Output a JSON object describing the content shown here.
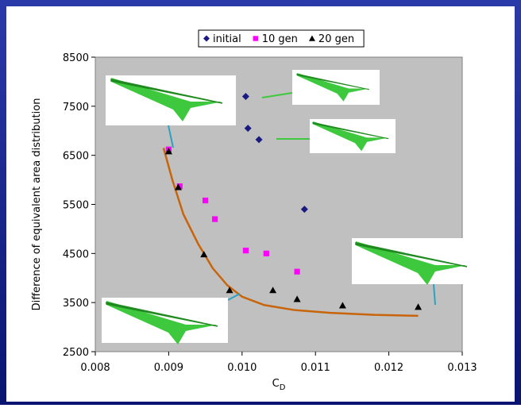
{
  "chart_data": {
    "type": "scatter",
    "xlabel": {
      "main": "C",
      "sub": "D"
    },
    "ylabel": "Difference of equivalent area distribution",
    "xlim": [
      0.008,
      0.013
    ],
    "xticks": [
      0.008,
      0.009,
      {
        "value": 0.01,
        "label": "0.010"
      },
      0.011,
      0.012,
      0.013
    ],
    "ylim": [
      2500,
      8500
    ],
    "yticks": [
      2500,
      3500,
      4500,
      5500,
      6500,
      7500,
      8500
    ],
    "plot_background": "#c0c0c0",
    "series": [
      {
        "name": "initial",
        "color": "#1a1a80",
        "marker": "diamond",
        "x": [
          0.01005,
          0.01008,
          0.01023,
          0.01085
        ],
        "values": [
          7700,
          7050,
          6820,
          5400
        ]
      },
      {
        "name": "10 gen",
        "color": "#ff00ff",
        "marker": "square",
        "x": [
          0.009,
          0.00915,
          0.0095,
          0.00963,
          0.01005,
          0.01033,
          0.01075
        ],
        "values": [
          6620,
          5870,
          5580,
          5200,
          4560,
          4500,
          4130
        ]
      },
      {
        "name": "20 gen",
        "color": "#000000",
        "marker": "triangle",
        "x": [
          0.009,
          0.00913,
          0.00948,
          0.00983,
          0.01042,
          0.01075,
          0.01137,
          0.0124
        ],
        "values": [
          6580,
          5850,
          4480,
          3750,
          3750,
          3570,
          3440,
          3410
        ]
      }
    ],
    "curve": {
      "color": "#c8640a",
      "x": [
        0.00893,
        0.00905,
        0.0092,
        0.0094,
        0.0096,
        0.0098,
        0.01,
        0.0103,
        0.0107,
        0.0112,
        0.0118,
        0.0124
      ],
      "values": [
        6650,
        6000,
        5300,
        4700,
        4200,
        3850,
        3620,
        3450,
        3350,
        3290,
        3250,
        3230
      ]
    }
  }
}
